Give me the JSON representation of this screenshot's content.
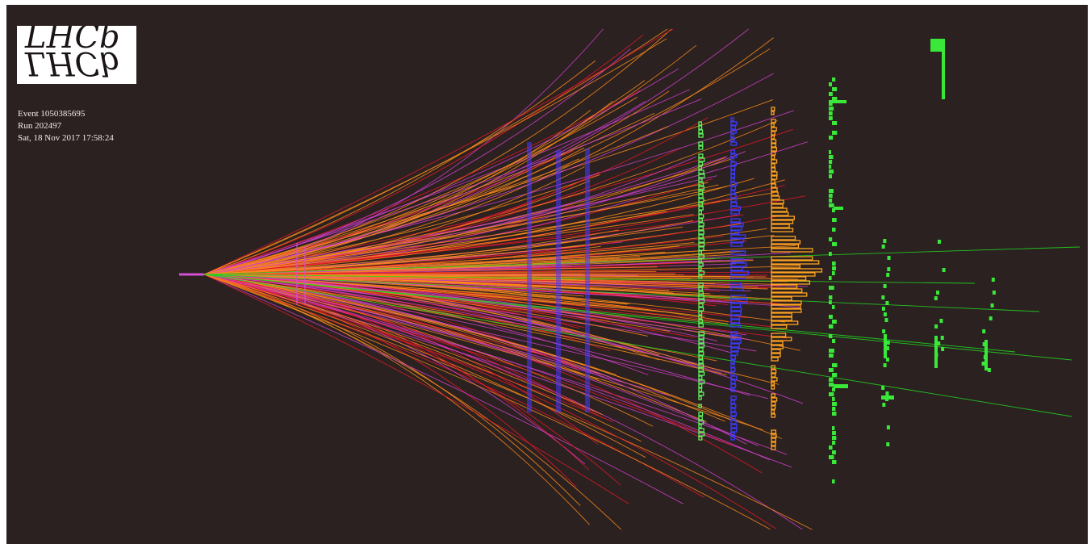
{
  "logo": {
    "text": "LHCb"
  },
  "event": {
    "event_line": "Event 1050385695",
    "run_line": "Run 202497",
    "date_line": "Sat, 18 Nov 2017 17:58:24"
  },
  "colors": {
    "background": "#2b2120",
    "tracks_orange": "#ff8c1a",
    "tracks_red": "#e8182a",
    "tracks_magenta": "#d23fd0",
    "muon_tracks_green": "#22d422",
    "vertex_detector_magenta": "#d050d0",
    "tracking_stations_blue": "#4b3bff",
    "ecal_green": "#5ef05e",
    "hcal_blue": "#3a3aff",
    "hcal_orange": "#ffa320",
    "muon_stations_green": "#39e839"
  }
}
